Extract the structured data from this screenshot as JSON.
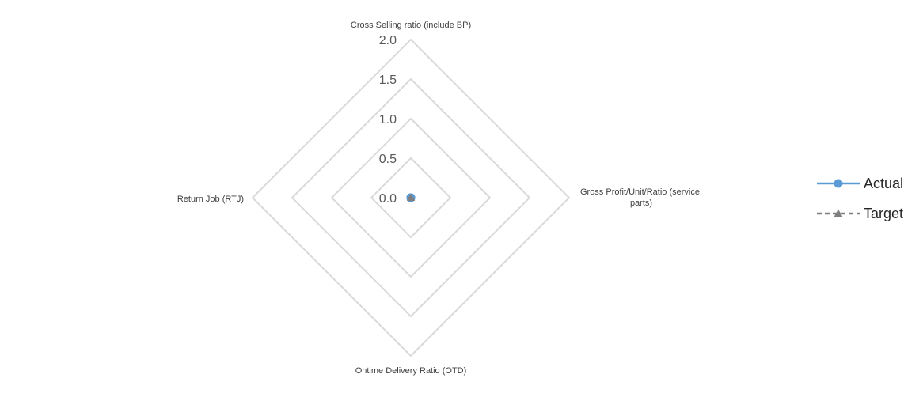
{
  "chart_data": {
    "type": "radar",
    "title": "",
    "categories": [
      "Cross Selling ratio (include BP)",
      "Gross Profit/Unit/Ratio (service,",
      "Ontime Delivery Ratio (OTD)",
      "Return Job (RTJ)"
    ],
    "category_label_continuation": {
      "1": "parts)"
    },
    "axis_range": [
      0,
      2.0
    ],
    "ticks": [
      "0.0",
      "0.5",
      "1.0",
      "1.5",
      "2.0"
    ],
    "tick_values": [
      0,
      0.5,
      1.0,
      1.5,
      2.0
    ],
    "grid": true,
    "legend_position": "right",
    "series": [
      {
        "name": "Actual",
        "values": [
          0,
          0,
          0,
          0
        ],
        "color": "#5b9bd5",
        "marker": "circle",
        "line": "solid"
      },
      {
        "name": "Target",
        "values": [
          0,
          0,
          0,
          0
        ],
        "color": "#7f7f7f",
        "marker": "triangle",
        "line": "dashed"
      }
    ],
    "grid_color": "#d9d9d9"
  }
}
